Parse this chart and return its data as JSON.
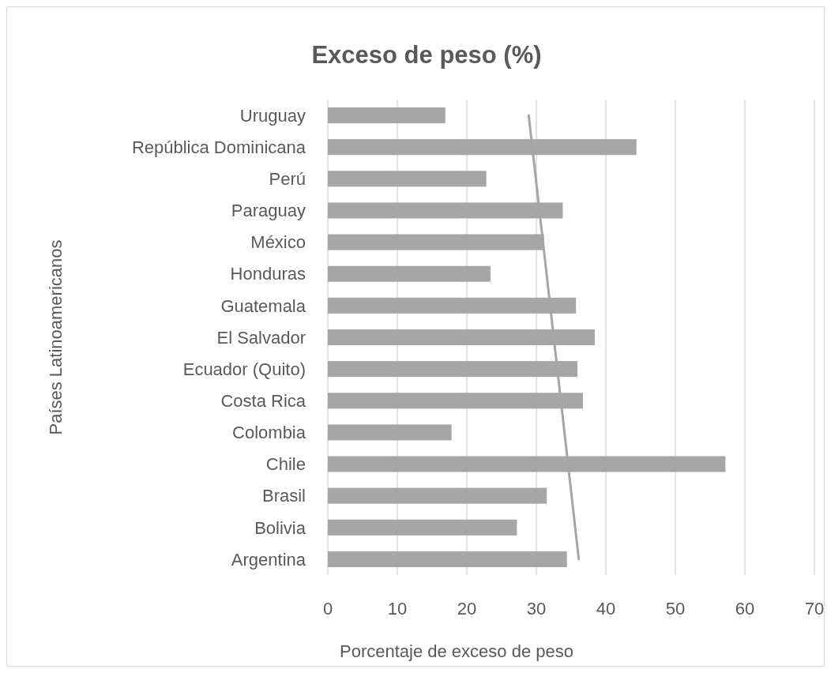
{
  "chart_data": {
    "type": "bar",
    "orientation": "horizontal",
    "title": "Exceso de peso (%)",
    "xlabel": "Porcentaje de exceso de peso",
    "ylabel": "Países Latinoamericanos",
    "categories": [
      "Uruguay",
      "República Dominicana",
      "Perú",
      "Paraguay",
      "México",
      "Honduras",
      "Guatemala",
      "El Salvador",
      "Ecuador (Quito)",
      "Costa Rica",
      "Colombia",
      "Chile",
      "Brasil",
      "Bolivia",
      "Argentina"
    ],
    "series": [
      {
        "color": "#a6a6a6",
        "values": [
          16.9,
          44.4,
          22.8,
          33.8,
          31.1,
          23.4,
          35.7,
          38.4,
          35.9,
          36.7,
          17.8,
          57.2,
          31.5,
          27.2,
          34.4
        ]
      },
      {
        "type": "line",
        "color": "#a5a5a5",
        "x": [
          "Uruguay",
          "Argentina"
        ],
        "values": [
          28.9,
          36.1
        ]
      }
    ],
    "xlim": [
      0,
      70
    ],
    "xticks": [
      0,
      10,
      20,
      30,
      40,
      50,
      60,
      70
    ],
    "grid": "x"
  }
}
